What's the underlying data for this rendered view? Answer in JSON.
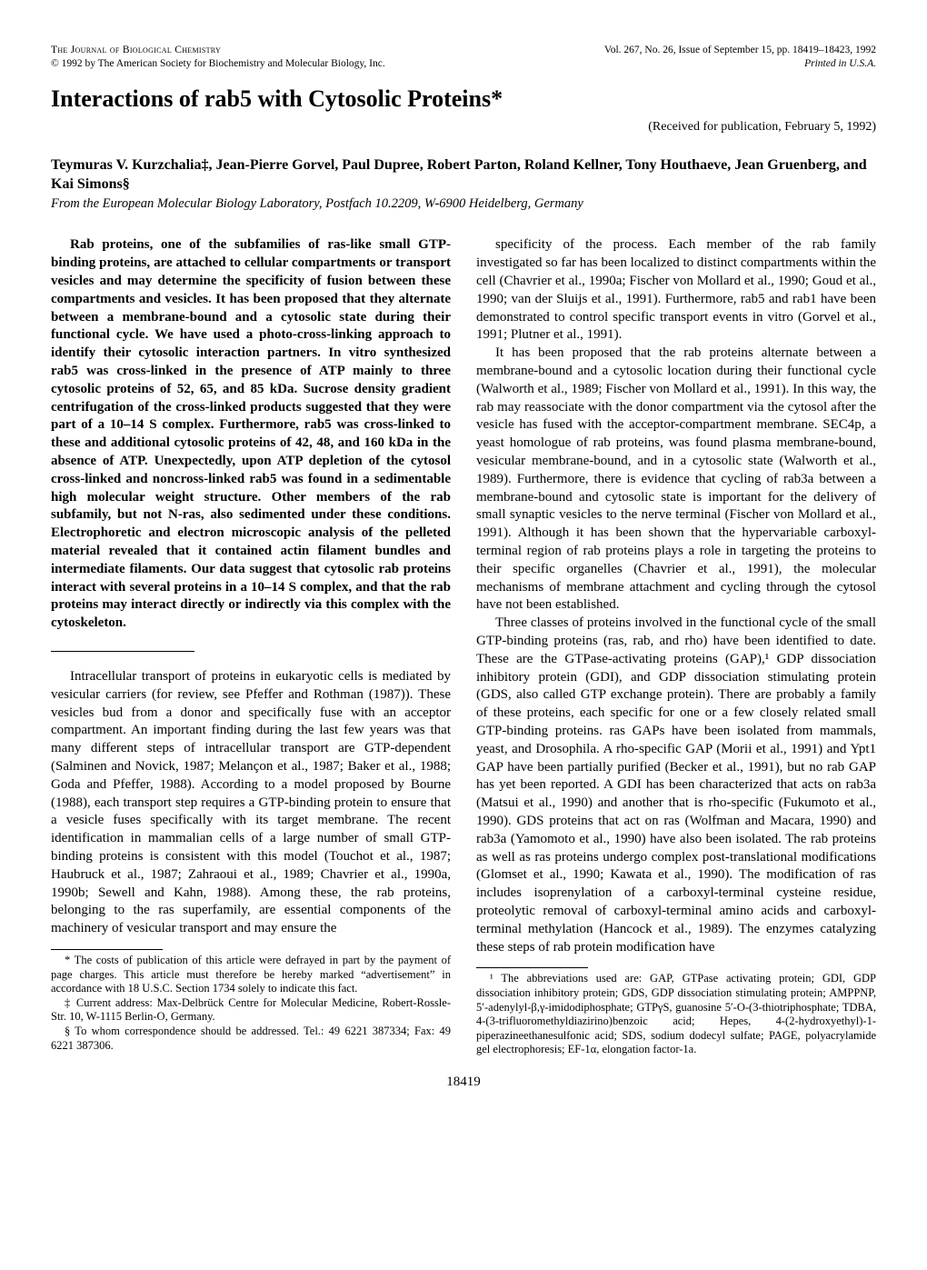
{
  "header": {
    "journal_line": "The Journal of Biological Chemistry",
    "copyright_line": "© 1992 by The American Society for Biochemistry and Molecular Biology, Inc.",
    "issue_line": "Vol. 267, No. 26, Issue of September 15, pp. 18419–18423, 1992",
    "printed_line": "Printed in U.S.A."
  },
  "title": "Interactions of rab5 with Cytosolic Proteins*",
  "received": "(Received for publication, February 5, 1992)",
  "authors": "Teymuras V. Kurzchalia‡, Jean-Pierre Gorvel, Paul Dupree, Robert Parton, Roland Kellner, Tony Houthaeve, Jean Gruenberg, and Kai Simons§",
  "affiliation": "From the European Molecular Biology Laboratory, Postfach 10.2209, W-6900 Heidelberg, Germany",
  "abstract": "Rab proteins, one of the subfamilies of ras-like small GTP-binding proteins, are attached to cellular compartments or transport vesicles and may determine the specificity of fusion between these compartments and vesicles. It has been proposed that they alternate between a membrane-bound and a cytosolic state during their functional cycle. We have used a photo-cross-linking approach to identify their cytosolic interaction partners. In vitro synthesized rab5 was cross-linked in the presence of ATP mainly to three cytosolic proteins of 52, 65, and 85 kDa. Sucrose density gradient centrifugation of the cross-linked products suggested that they were part of a 10–14 S complex. Furthermore, rab5 was cross-linked to these and additional cytosolic proteins of 42, 48, and 160 kDa in the absence of ATP. Unexpectedly, upon ATP depletion of the cytosol cross-linked and noncross-linked rab5 was found in a sedimentable high molecular weight structure. Other members of the rab subfamily, but not N-ras, also sedimented under these conditions. Electrophoretic and electron microscopic analysis of the pelleted material revealed that it contained actin filament bundles and intermediate filaments. Our data suggest that cytosolic rab proteins interact with several proteins in a 10–14 S complex, and that the rab proteins may interact directly or indirectly via this complex with the cytoskeleton.",
  "intro_p1": "Intracellular transport of proteins in eukaryotic cells is mediated by vesicular carriers (for review, see Pfeffer and Rothman (1987)). These vesicles bud from a donor and specifically fuse with an acceptor compartment. An important finding during the last few years was that many different steps of intracellular transport are GTP-dependent (Salminen and Novick, 1987; Melançon et al., 1987; Baker et al., 1988; Goda and Pfeffer, 1988). According to a model proposed by Bourne (1988), each transport step requires a GTP-binding protein to ensure that a vesicle fuses specifically with its target membrane. The recent identification in mammalian cells of a large number of small GTP-binding proteins is consistent with this model (Touchot et al., 1987; Haubruck et al., 1987; Zahraoui et al., 1989; Chavrier et al., 1990a, 1990b; Sewell and Kahn, 1988). Among these, the rab proteins, belonging to the ras superfamily, are essential components of the machinery of vesicular transport and may ensure the",
  "right_p1": "specificity of the process. Each member of the rab family investigated so far has been localized to distinct compartments within the cell (Chavrier et al., 1990a; Fischer von Mollard et al., 1990; Goud et al., 1990; van der Sluijs et al., 1991). Furthermore, rab5 and rab1 have been demonstrated to control specific transport events in vitro (Gorvel et al., 1991; Plutner et al., 1991).",
  "right_p2": "It has been proposed that the rab proteins alternate between a membrane-bound and a cytosolic location during their functional cycle (Walworth et al., 1989; Fischer von Mollard et al., 1991). In this way, the rab may reassociate with the donor compartment via the cytosol after the vesicle has fused with the acceptor-compartment membrane. SEC4p, a yeast homologue of rab proteins, was found plasma membrane-bound, vesicular membrane-bound, and in a cytosolic state (Walworth et al., 1989). Furthermore, there is evidence that cycling of rab3a between a membrane-bound and cytosolic state is important for the delivery of small synaptic vesicles to the nerve terminal (Fischer von Mollard et al., 1991). Although it has been shown that the hypervariable carboxyl-terminal region of rab proteins plays a role in targeting the proteins to their specific organelles (Chavrier et al., 1991), the molecular mechanisms of membrane attachment and cycling through the cytosol have not been established.",
  "right_p3": "Three classes of proteins involved in the functional cycle of the small GTP-binding proteins (ras, rab, and rho) have been identified to date. These are the GTPase-activating proteins (GAP),¹ GDP dissociation inhibitory protein (GDI), and GDP dissociation stimulating protein (GDS, also called GTP exchange protein). There are probably a family of these proteins, each specific for one or a few closely related small GTP-binding proteins. ras GAPs have been isolated from mammals, yeast, and Drosophila. A rho-specific GAP (Morii et al., 1991) and Ypt1 GAP have been partially purified (Becker et al., 1991), but no rab GAP has yet been reported. A GDI has been characterized that acts on rab3a (Matsui et al., 1990) and another that is rho-specific (Fukumoto et al., 1990). GDS proteins that act on ras (Wolfman and Macara, 1990) and rab3a (Yamomoto et al., 1990) have also been isolated. The rab proteins as well as ras proteins undergo complex post-translational modifications (Glomset et al., 1990; Kawata et al., 1990). The modification of ras includes isoprenylation of a carboxyl-terminal cysteine residue, proteolytic removal of carboxyl-terminal amino acids and carboxyl-terminal methylation (Hancock et al., 1989). The enzymes catalyzing these steps of rab protein modification have",
  "footnote_left_1": "* The costs of publication of this article were defrayed in part by the payment of page charges. This article must therefore be hereby marked “advertisement” in accordance with 18 U.S.C. Section 1734 solely to indicate this fact.",
  "footnote_left_2": "‡ Current address: Max-Delbrück Centre for Molecular Medicine, Robert-Rossle-Str. 10, W-1115 Berlin-O, Germany.",
  "footnote_left_3": "§ To whom correspondence should be addressed. Tel.: 49 6221 387334; Fax: 49 6221 387306.",
  "footnote_right_1": "¹ The abbreviations used are: GAP, GTPase activating protein; GDI, GDP dissociation inhibitory protein; GDS, GDP dissociation stimulating protein; AMPPNP, 5′-adenylyl-β,γ-imidodiphosphate; GTPγS, guanosine 5′-O-(3-thiotriphosphate; TDBA, 4-(3-trifluoromethyldiazirino)benzoic acid; Hepes, 4-(2-hydroxyethyl)-1-piperazineethanesulfonic acid; SDS, sodium dodecyl sulfate; PAGE, polyacrylamide gel electrophoresis; EF-1α, elongation factor-1a.",
  "page_number": "18419"
}
